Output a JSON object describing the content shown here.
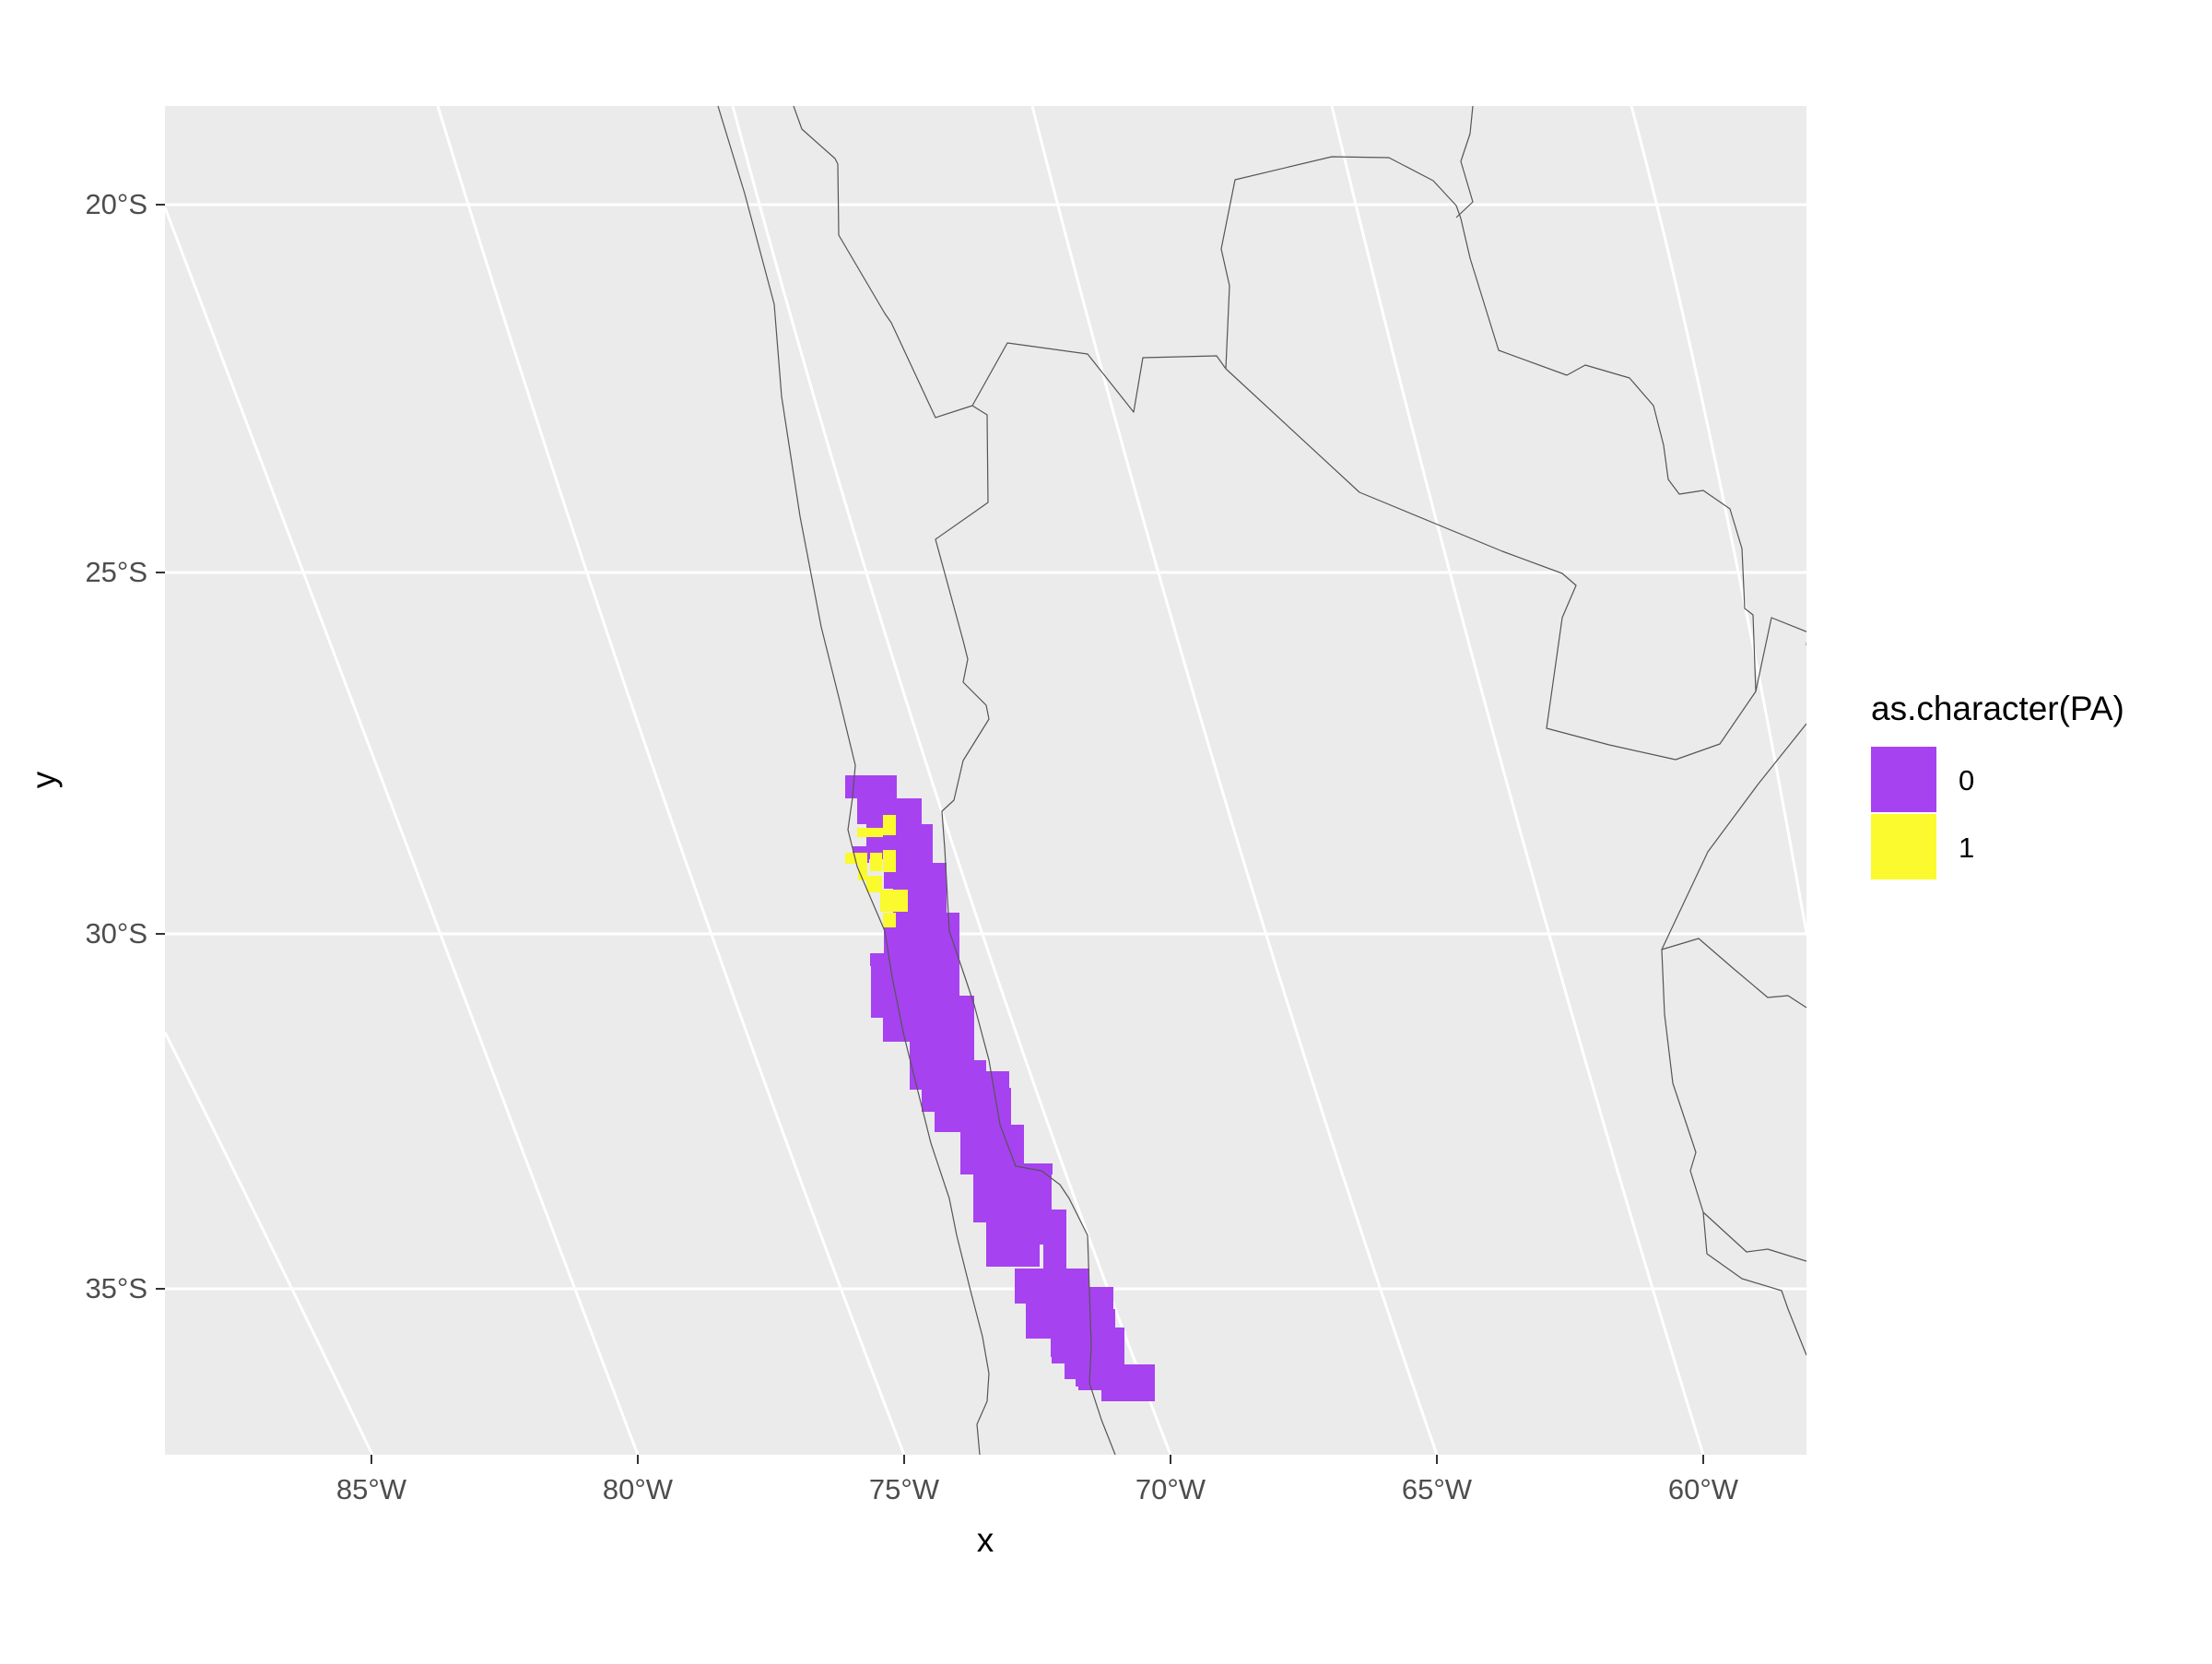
{
  "chart_data": {
    "type": "map",
    "xlabel": "x",
    "ylabel": "y",
    "x_range": [
      -89,
      -58
    ],
    "y_range": [
      -37.2,
      -18.6
    ],
    "x_ticks": [
      "85°W",
      "80°W",
      "75°W",
      "70°W",
      "65°W",
      "60°W"
    ],
    "y_ticks": [
      "20°S",
      "25°S",
      "30°S",
      "35°S"
    ],
    "grid": true,
    "legend": {
      "title": "as.character(PA)",
      "position": "right",
      "entries": [
        {
          "label": "0",
          "color": "#A742F0"
        },
        {
          "label": "1",
          "color": "#FAFA2E"
        }
      ]
    },
    "colors": {
      "panel_background": "#EBEBEB",
      "grid": "#FFFFFF",
      "borders": "#555555",
      "absence_0": "#A742F0",
      "presence_1": "#FAFA2E"
    },
    "region": "Chile coastal grid cells, ~28°S to ~36.5°S",
    "series": [
      {
        "name": "0",
        "color": "#A742F0"
      },
      {
        "name": "1",
        "color": "#FAFA2E"
      }
    ]
  }
}
